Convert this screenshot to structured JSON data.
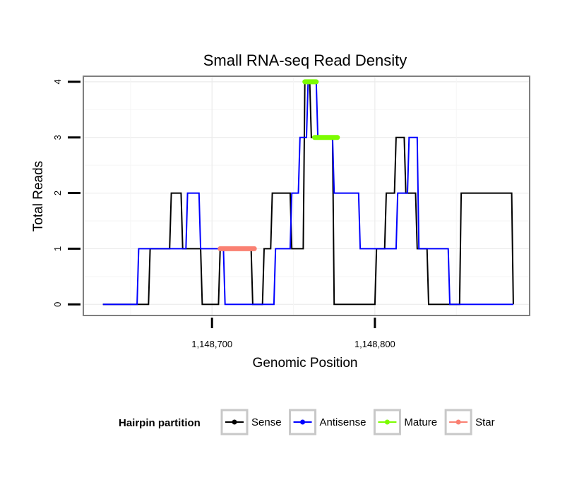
{
  "chart_data": {
    "type": "line",
    "title": "Small RNA-seq Read Density",
    "xlabel": "Genomic Position",
    "ylabel": "Total Reads",
    "xlim": [
      1148621,
      1148895
    ],
    "ylim": [
      -0.2,
      4.1
    ],
    "x_ticks": [
      {
        "value": 1148700,
        "label": "1,148,700"
      },
      {
        "value": 1148800,
        "label": "1,148,800"
      }
    ],
    "y_ticks": [
      {
        "value": 0,
        "label": "0"
      },
      {
        "value": 1,
        "label": "1"
      },
      {
        "value": 2,
        "label": "2"
      },
      {
        "value": 3,
        "label": "3"
      },
      {
        "value": 4,
        "label": "4"
      }
    ],
    "grid": true,
    "legend": {
      "title": "Hairpin partition",
      "placement": "bottom",
      "entries": [
        {
          "label": "Sense",
          "color": "#000000"
        },
        {
          "label": "Antisense",
          "color": "#0000ff"
        },
        {
          "label": "Mature",
          "color": "#7cfc00"
        },
        {
          "label": "Star",
          "color": "#fa8072"
        }
      ]
    },
    "series": [
      {
        "name": "Sense",
        "color": "#000000",
        "x": [
          1148633,
          1148661,
          1148662,
          1148674,
          1148675,
          1148681,
          1148682,
          1148693,
          1148694,
          1148704,
          1148705,
          1148714,
          1148715,
          1148724,
          1148725,
          1148731,
          1148732,
          1148736,
          1148737,
          1148748,
          1148749,
          1148756,
          1148757,
          1148760,
          1148761,
          1148766,
          1148767,
          1148774,
          1148775,
          1148781,
          1148782,
          1148800,
          1148801,
          1148806,
          1148807,
          1148812,
          1148813,
          1148818,
          1148819,
          1148825,
          1148826,
          1148832,
          1148833,
          1148838,
          1148839,
          1148844,
          1148845,
          1148852,
          1148853,
          1148865,
          1148866,
          1148884,
          1148885
        ],
        "y": [
          0,
          0,
          1,
          1,
          2,
          2,
          1,
          1,
          0,
          0,
          1,
          1,
          1,
          1,
          0,
          0,
          1,
          1,
          2,
          2,
          1,
          1,
          4,
          4,
          3,
          3,
          3,
          3,
          0,
          0,
          0,
          0,
          1,
          1,
          2,
          2,
          3,
          3,
          2,
          2,
          1,
          1,
          0,
          0,
          0,
          0,
          0,
          0,
          2,
          2,
          2,
          2,
          0
        ]
      },
      {
        "name": "Antisense",
        "color": "#0000ff",
        "x": [
          1148633,
          1148654,
          1148655,
          1148684,
          1148685,
          1148692,
          1148693,
          1148707,
          1148708,
          1148730,
          1148731,
          1148738,
          1148739,
          1148748,
          1148749,
          1148753,
          1148754,
          1148758,
          1148759,
          1148764,
          1148765,
          1148774,
          1148775,
          1148790,
          1148791,
          1148806,
          1148807,
          1148813,
          1148814,
          1148820,
          1148821,
          1148826,
          1148827,
          1148845,
          1148846,
          1148884,
          1148885
        ],
        "y": [
          0,
          0,
          1,
          1,
          2,
          2,
          1,
          1,
          0,
          0,
          0,
          0,
          1,
          1,
          2,
          2,
          3,
          3,
          4,
          4,
          3,
          3,
          2,
          2,
          1,
          1,
          1,
          1,
          2,
          2,
          3,
          3,
          1,
          1,
          0,
          0,
          0
        ]
      },
      {
        "name": "Mature",
        "color": "#7cfc00",
        "segments": [
          {
            "y": 4,
            "x_start": 1148757,
            "x_end": 1148764
          },
          {
            "y": 3,
            "x_start": 1148763,
            "x_end": 1148777
          }
        ]
      },
      {
        "name": "Star",
        "color": "#fa8072",
        "segments": [
          {
            "y": 1,
            "x_start": 1148705,
            "x_end": 1148726
          }
        ]
      }
    ]
  }
}
